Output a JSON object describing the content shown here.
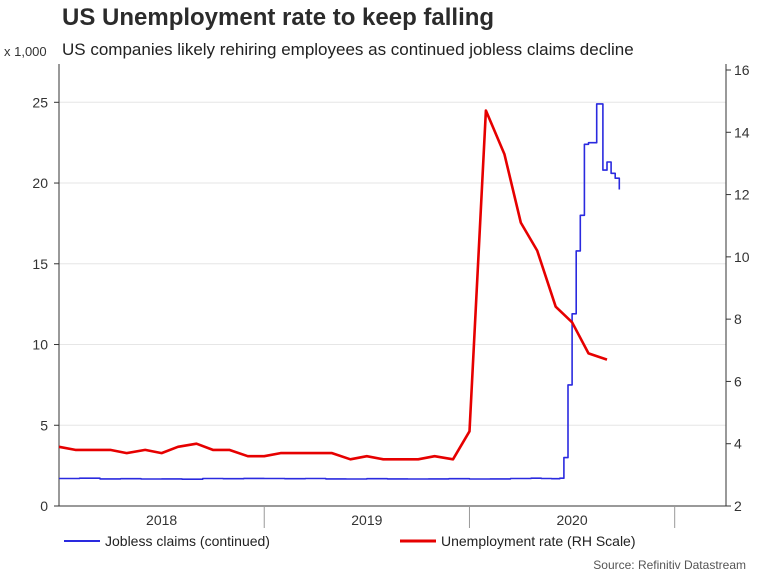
{
  "header": {
    "title": "US Unemployment rate to keep falling",
    "subtitle": "US companies likely rehiring employees as continued jobless claims decline",
    "left_axis_unit": "x 1,000"
  },
  "source": "Source: Refinitiv Datastream",
  "colors": {
    "jobless": "#2a2adf",
    "unemployment": "#e60000",
    "axis": "#333333",
    "grid": "#e6e6e6"
  },
  "chart_data": {
    "type": "line",
    "title": "US Unemployment rate to keep falling",
    "subtitle": "US companies likely rehiring employees as continued jobless claims decline",
    "xlim": [
      2017.75,
      2021.0
    ],
    "x_ticks": [
      {
        "label": "2018",
        "value": 2018.25
      },
      {
        "label": "2019",
        "value": 2019.25
      },
      {
        "label": "2020",
        "value": 2020.25
      }
    ],
    "year_dividers": [
      2018.75,
      2019.75,
      2020.75
    ],
    "left_axis": {
      "label": "x 1,000",
      "ylim": [
        0,
        27
      ],
      "ticks": [
        0,
        5,
        10,
        15,
        20,
        25
      ]
    },
    "right_axis": {
      "label": "",
      "ylim": [
        2,
        16
      ],
      "ticks": [
        2,
        4,
        6,
        8,
        10,
        12,
        14,
        16
      ]
    },
    "legend": {
      "placement": "bottom"
    },
    "series": [
      {
        "name": "Jobless claims (continued)",
        "axis": "left",
        "color": "#2a2adf",
        "style": "step",
        "points": [
          [
            2017.75,
            1.7
          ],
          [
            2017.85,
            1.72
          ],
          [
            2017.95,
            1.68
          ],
          [
            2018.05,
            1.69
          ],
          [
            2018.15,
            1.67
          ],
          [
            2018.25,
            1.68
          ],
          [
            2018.35,
            1.66
          ],
          [
            2018.45,
            1.7
          ],
          [
            2018.55,
            1.69
          ],
          [
            2018.65,
            1.71
          ],
          [
            2018.75,
            1.7
          ],
          [
            2018.85,
            1.69
          ],
          [
            2018.95,
            1.7
          ],
          [
            2019.05,
            1.68
          ],
          [
            2019.15,
            1.67
          ],
          [
            2019.25,
            1.69
          ],
          [
            2019.35,
            1.68
          ],
          [
            2019.45,
            1.67
          ],
          [
            2019.55,
            1.68
          ],
          [
            2019.65,
            1.69
          ],
          [
            2019.75,
            1.67
          ],
          [
            2019.85,
            1.68
          ],
          [
            2019.95,
            1.7
          ],
          [
            2020.05,
            1.72
          ],
          [
            2020.1,
            1.7
          ],
          [
            2020.15,
            1.69
          ],
          [
            2020.19,
            1.72
          ],
          [
            2020.21,
            3.0
          ],
          [
            2020.23,
            7.5
          ],
          [
            2020.25,
            11.9
          ],
          [
            2020.27,
            15.8
          ],
          [
            2020.29,
            18.0
          ],
          [
            2020.31,
            22.4
          ],
          [
            2020.33,
            22.5
          ],
          [
            2020.35,
            22.5
          ],
          [
            2020.37,
            24.9
          ],
          [
            2020.39,
            24.9
          ],
          [
            2020.4,
            20.8
          ],
          [
            2020.42,
            21.3
          ],
          [
            2020.44,
            20.6
          ],
          [
            2020.46,
            20.3
          ],
          [
            2020.48,
            19.6
          ]
        ]
      },
      {
        "name": "Unemployment rate (RH Scale)",
        "axis": "right",
        "color": "#e60000",
        "style": "line",
        "points": [
          [
            2017.75,
            3.9
          ],
          [
            2017.83,
            3.8
          ],
          [
            2017.92,
            3.8
          ],
          [
            2018.0,
            3.8
          ],
          [
            2018.08,
            3.7
          ],
          [
            2018.17,
            3.8
          ],
          [
            2018.25,
            3.7
          ],
          [
            2018.33,
            3.9
          ],
          [
            2018.42,
            4.0
          ],
          [
            2018.5,
            3.8
          ],
          [
            2018.58,
            3.8
          ],
          [
            2018.67,
            3.6
          ],
          [
            2018.75,
            3.6
          ],
          [
            2018.83,
            3.7
          ],
          [
            2018.92,
            3.7
          ],
          [
            2019.0,
            3.7
          ],
          [
            2019.08,
            3.7
          ],
          [
            2019.17,
            3.5
          ],
          [
            2019.25,
            3.6
          ],
          [
            2019.33,
            3.5
          ],
          [
            2019.42,
            3.5
          ],
          [
            2019.5,
            3.5
          ],
          [
            2019.58,
            3.6
          ],
          [
            2019.67,
            3.5
          ],
          [
            2019.75,
            4.4
          ],
          [
            2019.83,
            14.7
          ],
          [
            2019.92,
            13.3
          ],
          [
            2020.0,
            11.1
          ],
          [
            2020.08,
            10.2
          ],
          [
            2020.17,
            8.4
          ],
          [
            2020.25,
            7.9
          ],
          [
            2020.33,
            6.9
          ],
          [
            2020.42,
            6.7
          ]
        ]
      }
    ]
  }
}
